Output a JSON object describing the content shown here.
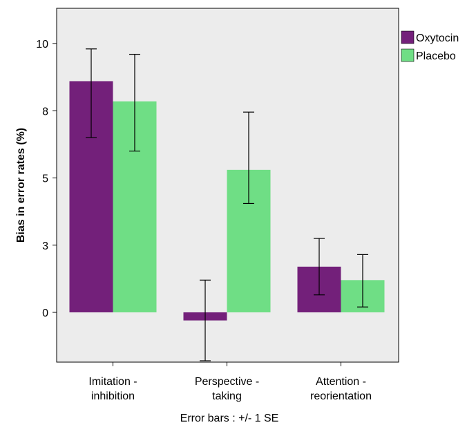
{
  "chart_data": {
    "type": "bar",
    "title": "",
    "xlabel": "",
    "ylabel": "Bias in error rates (%)",
    "footnote": "Error bars : +/- 1 SE",
    "categories": [
      "Imitation - inhibition",
      "Perspective - taking",
      "Attention - reorientation"
    ],
    "category_lines": [
      [
        "Imitation -",
        "inhibition"
      ],
      [
        "Perspective -",
        "taking"
      ],
      [
        "Attention -",
        "reorientation"
      ]
    ],
    "series": [
      {
        "name": "Oxytocin",
        "color": "#73207a",
        "values": [
          8.6,
          -0.3,
          1.7
        ],
        "error_low": [
          6.5,
          -1.8,
          0.65
        ],
        "error_high": [
          9.8,
          1.2,
          2.75
        ]
      },
      {
        "name": "Placebo",
        "color": "#6fde85",
        "values": [
          7.85,
          5.3,
          1.2
        ],
        "error_low": [
          6.0,
          4.05,
          0.2
        ],
        "error_high": [
          9.6,
          7.45,
          2.15
        ]
      }
    ],
    "ylim": [
      -2.3,
      11.3
    ],
    "yticks": [
      0,
      3,
      5,
      8,
      10
    ],
    "ytick_positions": [
      0,
      2.5,
      5,
      7.5,
      10
    ],
    "grid": false,
    "legend_position": "top-right",
    "plot_background": "#ececec"
  }
}
